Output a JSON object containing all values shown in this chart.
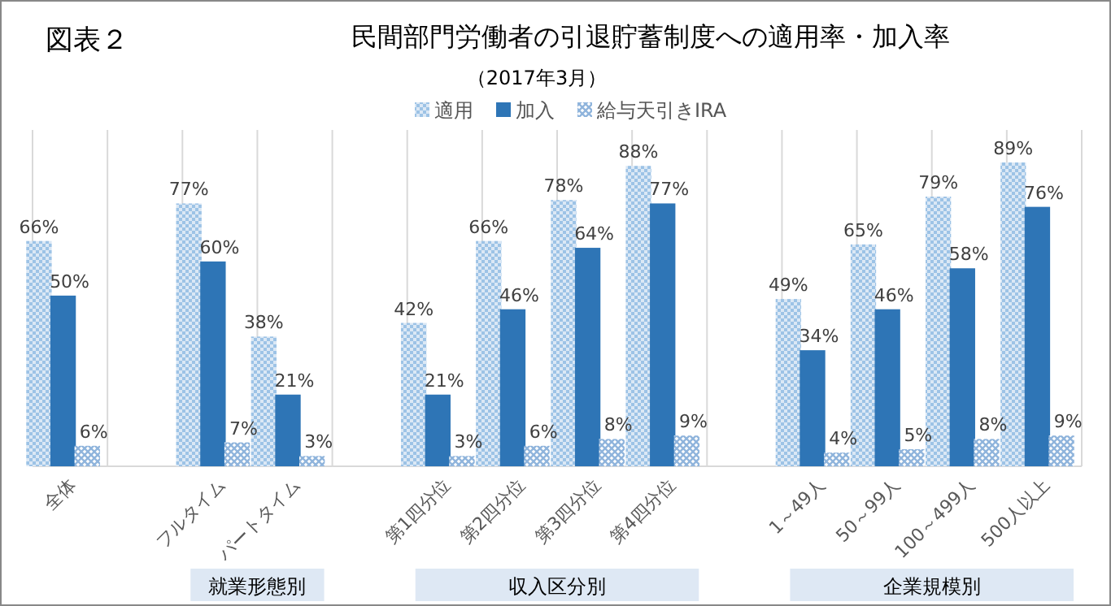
{
  "chart_data": {
    "type": "bar",
    "title": "民間部門労働者の引退貯蓄制度への適用率・加入率",
    "subtitle": "（2017年3月）",
    "categories": [
      "全体",
      null,
      "フルタイム",
      "パートタイム",
      null,
      "第1四分位",
      "第2四分位",
      "第3四分位",
      "第4四分位",
      null,
      "1～49人",
      "50～99人",
      "100～499人",
      "500人以上"
    ],
    "series": [
      {
        "name": "適用",
        "color": "#9dc3e6",
        "values": [
          66,
          null,
          77,
          38,
          null,
          42,
          66,
          78,
          88,
          null,
          49,
          65,
          79,
          89
        ],
        "value_labels": [
          "66%",
          null,
          "77%",
          "38%",
          null,
          "42%",
          "66%",
          "78%",
          "88%",
          null,
          "49%",
          "65%",
          "79%",
          "89%"
        ]
      },
      {
        "name": "加入",
        "color": "#2e75b6",
        "values": [
          50,
          null,
          60,
          21,
          null,
          21,
          46,
          64,
          77,
          null,
          34,
          46,
          58,
          76
        ],
        "value_labels": [
          "50%",
          null,
          "60%",
          "21%",
          null,
          "21%",
          "46%",
          "64%",
          "77%",
          null,
          "34%",
          "46%",
          "58%",
          "76%"
        ]
      },
      {
        "name": "給与天引きIRA",
        "color": "#8fb4dc",
        "values": [
          6,
          null,
          7,
          3,
          null,
          3,
          6,
          8,
          9,
          null,
          4,
          5,
          8,
          9
        ],
        "value_labels": [
          "6%",
          null,
          "7%",
          "3%",
          null,
          "3%",
          "6%",
          "8%",
          "9%",
          null,
          "4%",
          "5%",
          "8%",
          "9%"
        ]
      }
    ],
    "grid": "x",
    "legend": "top",
    "annotations": [
      "図表２",
      "就業形態別",
      "収入区分別",
      "企業規模別"
    ]
  }
}
